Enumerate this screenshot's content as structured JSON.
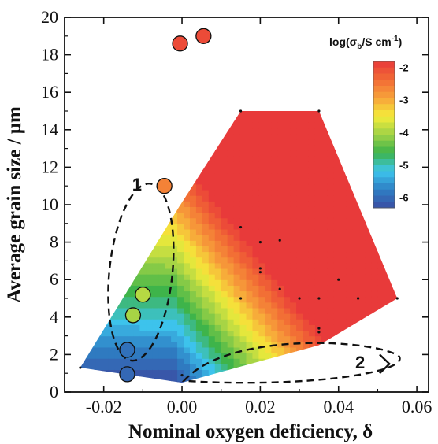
{
  "chart_data": {
    "type": "scatter",
    "xlabel": "Nominal oxygen deficiency, δ",
    "ylabel": "Average grain size / μm",
    "xlim": [
      -0.03,
      0.063
    ],
    "ylim": [
      0,
      20
    ],
    "xticks": [
      -0.02,
      0.0,
      0.02,
      0.04,
      0.06
    ],
    "xtick_labels": [
      "-0.02",
      "0.00",
      "0.02",
      "0.04",
      "0.06"
    ],
    "yticks": [
      0,
      2,
      4,
      6,
      8,
      10,
      12,
      14,
      16,
      18,
      20
    ],
    "ytick_labels": [
      "0",
      "2",
      "4",
      "6",
      "8",
      "10",
      "12",
      "14",
      "16",
      "18",
      "20"
    ],
    "colorbar": {
      "title": "log(σb/S cm-1)",
      "title_parts": [
        "log(σ",
        "b",
        "/S cm",
        "-1",
        ")"
      ],
      "range": [
        -6.3,
        -1.8
      ],
      "ticks": [
        -2,
        -3,
        -4,
        -5,
        -6
      ],
      "tick_labels": [
        "-2",
        "-3",
        "-4",
        "-5",
        "-6"
      ],
      "colors": [
        "#3a4ea3",
        "#2e7fc4",
        "#3ec6ee",
        "#3cb34a",
        "#9fd246",
        "#f5ec3a",
        "#f7a23a",
        "#f26b35",
        "#e83a3a"
      ]
    },
    "contour_region": {
      "boundary": [
        [
          -0.026,
          1.3
        ],
        [
          -0.001,
          9.8
        ],
        [
          0.015,
          15.0
        ],
        [
          0.035,
          15.0
        ],
        [
          0.055,
          5.0
        ],
        [
          0.035,
          2.5
        ],
        [
          0.0,
          0.5
        ]
      ],
      "grid_points": [
        [
          0.015,
          8.8
        ],
        [
          0.02,
          8.0
        ],
        [
          0.025,
          8.1
        ],
        [
          0.02,
          6.6
        ],
        [
          0.02,
          6.4
        ],
        [
          0.04,
          6.0
        ],
        [
          0.025,
          5.5
        ],
        [
          0.015,
          5.0
        ],
        [
          0.03,
          5.0
        ],
        [
          0.035,
          5.0
        ],
        [
          0.045,
          5.0
        ],
        [
          0.055,
          5.0
        ],
        [
          0.035,
          3.4
        ],
        [
          0.035,
          3.2
        ],
        [
          0.015,
          15.0
        ],
        [
          0.035,
          15.0
        ],
        [
          -0.026,
          1.3
        ],
        [
          0.0,
          0.9
        ]
      ]
    },
    "series": [
      {
        "points": [
          {
            "x": -0.0005,
            "y": 18.6,
            "log_sigma": -2.0
          },
          {
            "x": 0.0055,
            "y": 19.0,
            "log_sigma": -2.0
          },
          {
            "x": -0.0045,
            "y": 11.0,
            "log_sigma": -2.6
          },
          {
            "x": -0.01,
            "y": 5.2,
            "log_sigma": -3.9
          },
          {
            "x": -0.0125,
            "y": 4.1,
            "log_sigma": -4.0
          },
          {
            "x": -0.014,
            "y": 2.25,
            "log_sigma": -5.9
          },
          {
            "x": -0.014,
            "y": 0.95,
            "log_sigma": -6.0
          }
        ]
      }
    ],
    "annotations": [
      {
        "label": "1",
        "x": -0.0115,
        "y": 11.0
      },
      {
        "label": "2",
        "x": 0.0455,
        "y": 1.5
      }
    ],
    "grid": false,
    "legend": "none"
  }
}
